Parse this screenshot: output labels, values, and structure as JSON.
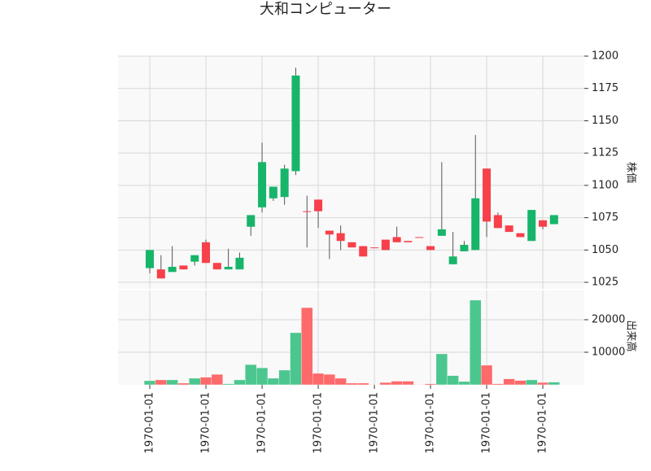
{
  "chart_data": {
    "type": "candlestick",
    "title": "大和コンピューター",
    "ylabel": "株価",
    "y2label": "出来高",
    "categories": [
      "1970-01-01",
      null,
      null,
      null,
      null,
      "1970-01-01",
      null,
      null,
      null,
      null,
      "1970-01-01",
      null,
      null,
      null,
      null,
      "1970-01-01",
      null,
      null,
      null,
      null,
      "1970-01-01",
      null,
      null,
      null,
      null,
      "1970-01-01",
      null,
      null,
      null,
      null,
      "1970-01-01",
      null,
      null,
      null,
      null,
      "1970-01-01",
      null
    ],
    "open": [
      1036,
      1035,
      1033,
      1038,
      1041,
      1056,
      1040,
      1035,
      1035,
      1068,
      1083,
      1090,
      1091,
      1111,
      1080,
      1089,
      1065,
      1063,
      1056,
      1053,
      1052,
      1058,
      1060,
      1057,
      1060,
      1053,
      1061,
      1039,
      1049,
      1050,
      1113,
      1077,
      1069,
      1063,
      1057,
      1073,
      1070
    ],
    "high": [
      1050,
      1046,
      1053,
      1038,
      1046,
      1058,
      1040,
      1051,
      1048,
      1077,
      1133,
      1099,
      1116,
      1191,
      1092,
      1089,
      1065,
      1069,
      1056,
      1053,
      1052,
      1058,
      1068,
      1057,
      1060,
      1053,
      1118,
      1064,
      1057,
      1139,
      1113,
      1079,
      1069,
      1063,
      1081,
      1073,
      1077
    ],
    "low": [
      1032,
      1028,
      1033,
      1035,
      1038,
      1040,
      1035,
      1035,
      1035,
      1061,
      1079,
      1088,
      1085,
      1108,
      1052,
      1067,
      1043,
      1050,
      1052,
      1045,
      1052,
      1050,
      1056,
      1056,
      1060,
      1050,
      1061,
      1039,
      1049,
      1050,
      1060,
      1067,
      1064,
      1060,
      1057,
      1066,
      1070
    ],
    "close": [
      1050,
      1028,
      1037,
      1035,
      1046,
      1040,
      1035,
      1037,
      1044,
      1077,
      1118,
      1099,
      1113,
      1185,
      1080,
      1080,
      1062,
      1057,
      1052,
      1045,
      1052,
      1050,
      1056,
      1056,
      1060,
      1050,
      1066,
      1045,
      1054,
      1090,
      1072,
      1067,
      1064,
      1060,
      1081,
      1068,
      1077
    ],
    "volume": [
      1250,
      1500,
      1500,
      500,
      2000,
      2300,
      3200,
      300,
      1500,
      6200,
      5200,
      2000,
      4500,
      16000,
      23700,
      3500,
      3200,
      2000,
      500,
      500,
      100,
      700,
      1100,
      1100,
      100,
      300,
      9500,
      2800,
      1000,
      26000,
      6000,
      300,
      1800,
      1300,
      1500,
      700,
      800
    ],
    "up_color": "#16b56a",
    "down_color": "#f7404a",
    "volume_up_color": "#4cc68f",
    "volume_down_color": "#fd6a6b",
    "ylim": [
      1020,
      1200
    ],
    "yticks": [
      1025,
      1050,
      1075,
      1100,
      1125,
      1150,
      1175,
      1200
    ],
    "y2lim": [
      0,
      29000
    ],
    "y2ticks": [
      10000,
      20000
    ],
    "grid": true
  }
}
